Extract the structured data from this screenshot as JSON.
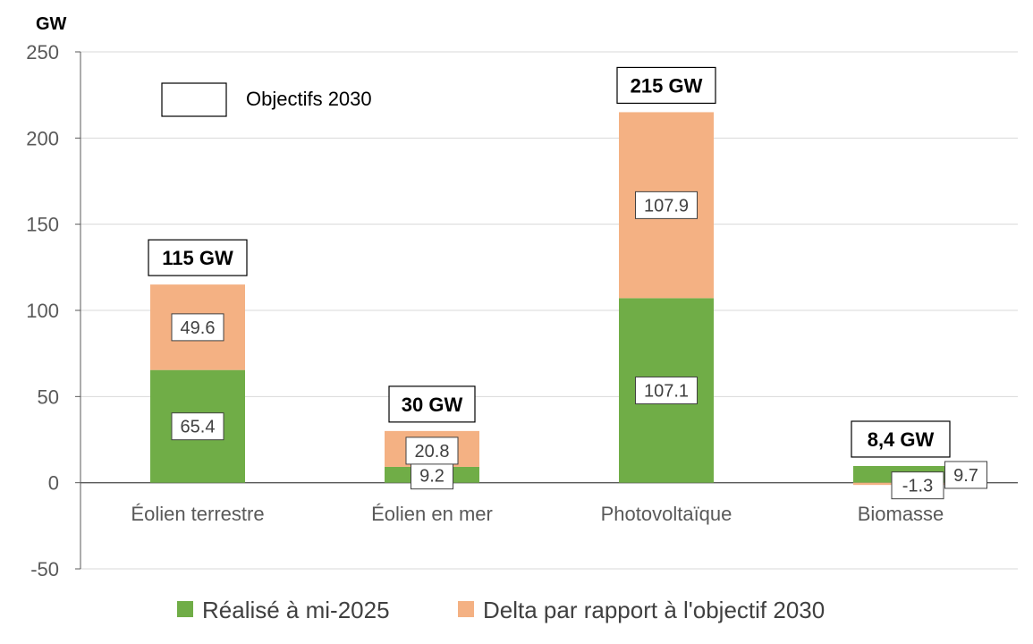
{
  "chart_data": {
    "type": "bar",
    "stacked": true,
    "unit": "GW",
    "categories": [
      "Éolien terrestre",
      "Éolien en mer",
      "Photovoltaïque",
      "Biomasse"
    ],
    "series": [
      {
        "name": "Réalisé à mi-2025",
        "values": [
          65.4,
          9.2,
          107.1,
          9.7
        ],
        "labels": [
          "65.4",
          "9.2",
          "107.1",
          "9.7"
        ],
        "color": "#70AD47"
      },
      {
        "name": "Delta par rapport à l'objectif 2030",
        "values": [
          49.6,
          20.8,
          107.9,
          -1.3
        ],
        "labels": [
          "49.6",
          "20.8",
          "107.9",
          "-1.3"
        ],
        "color": "#F4B183"
      }
    ],
    "totals": [
      "115 GW",
      "30 GW",
      "215 GW",
      "8,4 GW"
    ],
    "ylim": [
      -50,
      250
    ],
    "yticks": [
      -50,
      0,
      50,
      100,
      150,
      200,
      250
    ],
    "grid": true,
    "legend_placement": "bottom",
    "annotation_box": "Objectifs 2030"
  }
}
